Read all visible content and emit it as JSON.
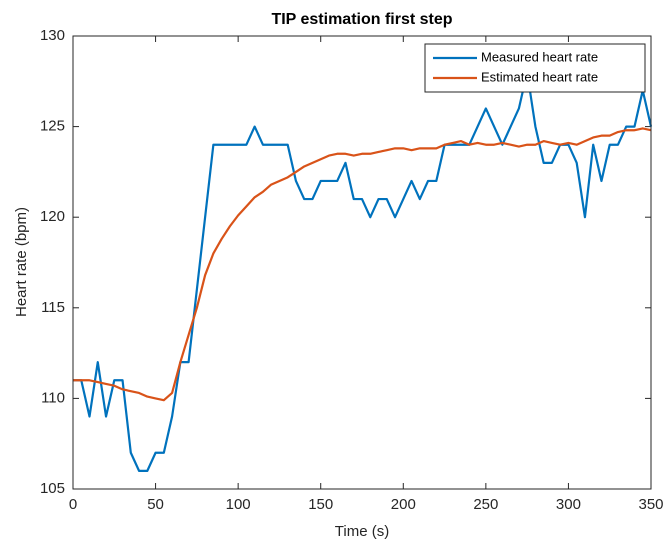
{
  "chart_data": {
    "type": "line",
    "title": "TIP estimation first step",
    "x_label": "Time (s)",
    "y_label": "Heart rate (bpm)",
    "x": [
      0,
      5,
      10,
      15,
      20,
      25,
      30,
      35,
      40,
      45,
      50,
      55,
      60,
      65,
      70,
      75,
      80,
      85,
      90,
      95,
      100,
      105,
      110,
      115,
      120,
      125,
      130,
      135,
      140,
      145,
      150,
      155,
      160,
      165,
      170,
      175,
      180,
      185,
      190,
      195,
      200,
      205,
      210,
      215,
      220,
      225,
      230,
      235,
      240,
      245,
      250,
      255,
      260,
      265,
      270,
      275,
      280,
      285,
      290,
      295,
      300,
      305,
      310,
      315,
      320,
      325,
      330,
      335,
      340,
      345,
      350
    ],
    "series": [
      {
        "name": "Measured heart rate",
        "color": "#0072bd",
        "values": [
          111,
          111,
          109,
          112,
          109,
          111,
          111,
          107,
          106,
          106,
          107,
          107,
          109,
          112,
          112,
          116,
          120,
          124,
          124,
          124,
          124,
          124,
          125,
          124,
          124,
          124,
          124,
          122,
          121,
          121,
          122,
          122,
          122,
          123,
          121,
          121,
          120,
          121,
          121,
          120,
          121,
          122,
          121,
          122,
          122,
          124,
          124,
          124,
          124,
          125,
          126,
          125,
          124,
          125,
          126,
          128,
          125,
          123,
          123,
          124,
          124,
          123,
          120,
          124,
          122,
          124,
          124,
          125,
          125,
          127,
          125
        ]
      },
      {
        "name": "Estimated heart rate",
        "color": "#d95319",
        "values": [
          111,
          111,
          111,
          110.9,
          110.8,
          110.7,
          110.5,
          110.4,
          110.3,
          110.1,
          110,
          109.9,
          110.3,
          112,
          113.5,
          115,
          116.8,
          118,
          118.8,
          119.5,
          120.1,
          120.6,
          121.1,
          121.4,
          121.8,
          122,
          122.2,
          122.5,
          122.8,
          123,
          123.2,
          123.4,
          123.5,
          123.5,
          123.4,
          123.5,
          123.5,
          123.6,
          123.7,
          123.8,
          123.8,
          123.7,
          123.8,
          123.8,
          123.8,
          124,
          124.1,
          124.2,
          124,
          124.1,
          124,
          124,
          124.1,
          124,
          123.9,
          124,
          124,
          124.2,
          124.1,
          124,
          124.1,
          124,
          124.2,
          124.4,
          124.5,
          124.5,
          124.7,
          124.8,
          124.8,
          124.9,
          124.8
        ]
      }
    ],
    "xlim": [
      0,
      350
    ],
    "xticks": [
      0,
      50,
      100,
      150,
      200,
      250,
      300,
      350
    ],
    "ylim": [
      105,
      130
    ],
    "yticks": [
      105,
      110,
      115,
      120,
      125,
      130
    ],
    "legend": "upper-right"
  }
}
